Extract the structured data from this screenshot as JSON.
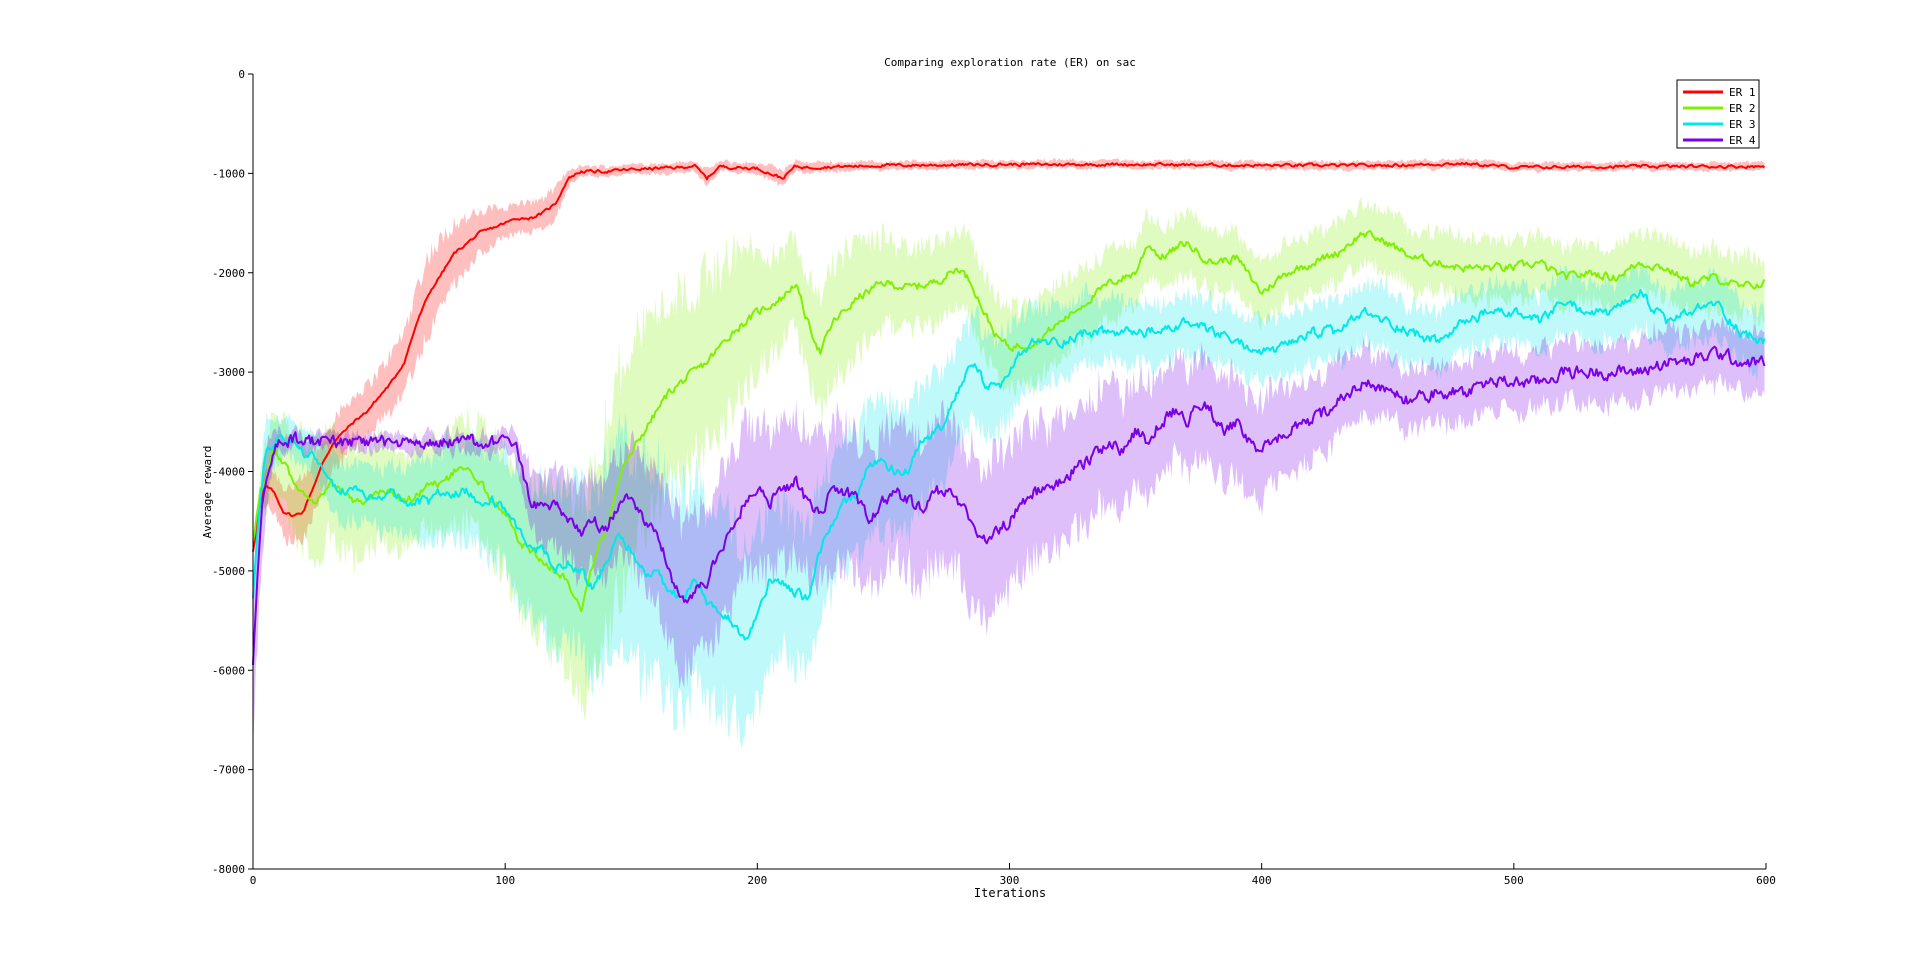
{
  "chart_data": {
    "type": "line",
    "title": "Comparing exploration rate (ER) on sac",
    "xlabel": "Iterations",
    "ylabel": "Average reward",
    "xlim": [
      0,
      600
    ],
    "ylim": [
      -8000,
      0
    ],
    "xticks": [
      0,
      100,
      200,
      300,
      400,
      500,
      600
    ],
    "yticks": [
      -8000,
      -7000,
      -6000,
      -5000,
      -4000,
      -3000,
      -2000,
      -1000,
      0
    ],
    "legend_position": "top-right",
    "grid": false,
    "shaded_band": "variance band around each mean line",
    "series": [
      {
        "name": "ER 1",
        "color": "#ff0000",
        "x": [
          0,
          3,
          5,
          8,
          12,
          16,
          20,
          24,
          28,
          32,
          36,
          40,
          45,
          50,
          55,
          60,
          65,
          70,
          75,
          80,
          85,
          90,
          95,
          100,
          105,
          110,
          115,
          120,
          125,
          130,
          140,
          150,
          160,
          170,
          175,
          180,
          185,
          190,
          200,
          205,
          210,
          215,
          220,
          250,
          300,
          350,
          400,
          450,
          480,
          500,
          550,
          600
        ],
        "y": [
          -4800,
          -4300,
          -4150,
          -4200,
          -4400,
          -4450,
          -4400,
          -4150,
          -3900,
          -3700,
          -3600,
          -3500,
          -3400,
          -3250,
          -3100,
          -2900,
          -2500,
          -2200,
          -2000,
          -1800,
          -1700,
          -1600,
          -1550,
          -1500,
          -1450,
          -1450,
          -1400,
          -1300,
          -1050,
          -980,
          -980,
          -960,
          -950,
          -940,
          -920,
          -1050,
          -930,
          -940,
          -950,
          -1000,
          -1050,
          -930,
          -940,
          -920,
          -910,
          -910,
          -920,
          -920,
          -900,
          -940,
          -930,
          -930
        ],
        "band": [
          0,
          0,
          200,
          200,
          250,
          300,
          300,
          250,
          250,
          250,
          250,
          250,
          250,
          250,
          300,
          300,
          350,
          400,
          350,
          300,
          250,
          200,
          200,
          150,
          150,
          150,
          150,
          150,
          80,
          50,
          50,
          50,
          50,
          50,
          50,
          80,
          50,
          50,
          50,
          80,
          80,
          50,
          50,
          40,
          40,
          40,
          40,
          40,
          40,
          40,
          40,
          40
        ]
      },
      {
        "name": "ER 2",
        "color": "#80f000",
        "x": [
          0,
          3,
          5,
          8,
          12,
          16,
          20,
          25,
          30,
          35,
          40,
          45,
          50,
          55,
          60,
          65,
          70,
          75,
          80,
          85,
          90,
          95,
          100,
          105,
          110,
          115,
          120,
          125,
          130,
          135,
          140,
          145,
          150,
          155,
          160,
          165,
          170,
          180,
          190,
          200,
          210,
          215,
          220,
          225,
          230,
          240,
          250,
          260,
          270,
          280,
          285,
          290,
          295,
          300,
          310,
          320,
          330,
          340,
          350,
          355,
          360,
          370,
          380,
          390,
          400,
          410,
          420,
          430,
          440,
          450,
          460,
          470,
          480,
          490,
          500,
          510,
          520,
          530,
          540,
          550,
          560,
          570,
          580,
          590,
          600
        ],
        "y": [
          -4700,
          -4200,
          -4100,
          -3800,
          -3900,
          -4100,
          -4200,
          -4300,
          -4100,
          -4200,
          -4300,
          -4300,
          -4200,
          -4200,
          -4300,
          -4250,
          -4100,
          -4150,
          -4000,
          -4000,
          -4100,
          -4300,
          -4400,
          -4700,
          -4800,
          -4900,
          -5000,
          -5100,
          -5400,
          -4900,
          -4600,
          -4100,
          -3800,
          -3600,
          -3400,
          -3200,
          -3100,
          -2900,
          -2600,
          -2400,
          -2250,
          -2100,
          -2500,
          -2800,
          -2500,
          -2250,
          -2100,
          -2150,
          -2100,
          -1950,
          -2100,
          -2400,
          -2650,
          -2750,
          -2700,
          -2500,
          -2300,
          -2100,
          -2000,
          -1700,
          -1850,
          -1700,
          -1900,
          -1850,
          -2200,
          -2000,
          -1900,
          -1800,
          -1600,
          -1700,
          -1850,
          -1900,
          -1950,
          -1950,
          -1950,
          -1900,
          -2050,
          -2000,
          -2050,
          -1900,
          -1950,
          -2100,
          -2050,
          -2150,
          -2100
        ],
        "band": [
          0,
          200,
          350,
          400,
          450,
          500,
          550,
          550,
          550,
          550,
          550,
          500,
          500,
          500,
          450,
          450,
          450,
          450,
          500,
          500,
          550,
          600,
          600,
          650,
          700,
          750,
          800,
          900,
          1000,
          1000,
          1100,
          1100,
          1100,
          1050,
          1000,
          950,
          900,
          850,
          800,
          600,
          450,
          450,
          500,
          600,
          600,
          550,
          450,
          400,
          400,
          400,
          400,
          400,
          400,
          400,
          400,
          400,
          350,
          350,
          300,
          300,
          300,
          300,
          300,
          300,
          300,
          300,
          300,
          300,
          300,
          300,
          300,
          300,
          300,
          300,
          300,
          300,
          300,
          300,
          300,
          300,
          300,
          300,
          300,
          300,
          300
        ]
      },
      {
        "name": "ER 3",
        "color": "#00e8e8",
        "x": [
          0,
          2,
          5,
          8,
          12,
          16,
          20,
          25,
          30,
          35,
          40,
          45,
          50,
          55,
          60,
          65,
          70,
          75,
          80,
          85,
          90,
          95,
          100,
          105,
          110,
          115,
          120,
          125,
          130,
          135,
          140,
          145,
          150,
          155,
          160,
          165,
          170,
          175,
          180,
          185,
          190,
          195,
          200,
          205,
          210,
          215,
          220,
          225,
          230,
          235,
          240,
          245,
          250,
          255,
          260,
          265,
          270,
          275,
          280,
          285,
          290,
          295,
          300,
          305,
          310,
          320,
          330,
          340,
          350,
          360,
          370,
          380,
          390,
          400,
          410,
          420,
          430,
          440,
          450,
          460,
          470,
          480,
          490,
          500,
          510,
          520,
          530,
          540,
          550,
          560,
          570,
          580,
          590,
          600
        ],
        "y": [
          -5300,
          -4600,
          -3800,
          -3700,
          -3650,
          -3700,
          -3800,
          -3900,
          -4100,
          -4200,
          -4200,
          -4250,
          -4300,
          -4200,
          -4300,
          -4300,
          -4300,
          -4200,
          -4200,
          -4200,
          -4300,
          -4300,
          -4400,
          -4600,
          -4800,
          -4800,
          -5000,
          -4900,
          -5000,
          -5200,
          -4900,
          -4600,
          -4800,
          -5000,
          -5000,
          -5200,
          -5300,
          -5100,
          -5300,
          -5400,
          -5500,
          -5700,
          -5400,
          -5100,
          -5100,
          -5200,
          -5300,
          -4800,
          -4500,
          -4300,
          -4200,
          -3900,
          -3900,
          -4000,
          -4000,
          -3700,
          -3600,
          -3500,
          -3200,
          -2900,
          -3100,
          -3200,
          -3000,
          -2800,
          -2700,
          -2700,
          -2600,
          -2600,
          -2600,
          -2600,
          -2500,
          -2600,
          -2700,
          -2800,
          -2750,
          -2600,
          -2600,
          -2400,
          -2500,
          -2600,
          -2700,
          -2500,
          -2400,
          -2400,
          -2500,
          -2300,
          -2400,
          -2400,
          -2200,
          -2500,
          -2400,
          -2300,
          -2600,
          -2700
        ],
        "band": [
          0,
          200,
          300,
          250,
          200,
          200,
          200,
          250,
          250,
          300,
          300,
          300,
          300,
          350,
          350,
          400,
          400,
          450,
          450,
          500,
          500,
          550,
          600,
          650,
          700,
          750,
          800,
          800,
          850,
          900,
          950,
          1000,
          1050,
          1100,
          1100,
          1100,
          1100,
          1050,
          1000,
          1000,
          950,
          900,
          850,
          800,
          750,
          700,
          700,
          700,
          650,
          650,
          650,
          650,
          650,
          600,
          600,
          600,
          550,
          550,
          500,
          500,
          500,
          450,
          450,
          400,
          400,
          350,
          350,
          300,
          300,
          300,
          300,
          300,
          300,
          300,
          300,
          300,
          300,
          300,
          300,
          300,
          300,
          300,
          300,
          300,
          300,
          300,
          300,
          300,
          300,
          300,
          300,
          300,
          300,
          300
        ]
      },
      {
        "name": "ER 4",
        "color": "#7a00e6",
        "x": [
          0,
          2,
          4,
          6,
          8,
          10,
          15,
          20,
          30,
          40,
          50,
          60,
          70,
          80,
          90,
          100,
          105,
          110,
          115,
          120,
          125,
          130,
          135,
          140,
          145,
          150,
          155,
          160,
          165,
          170,
          175,
          180,
          185,
          190,
          195,
          200,
          205,
          210,
          215,
          220,
          225,
          230,
          235,
          240,
          245,
          250,
          255,
          260,
          265,
          270,
          275,
          280,
          285,
          290,
          295,
          300,
          305,
          310,
          315,
          320,
          325,
          330,
          335,
          340,
          345,
          350,
          355,
          360,
          365,
          370,
          375,
          380,
          385,
          390,
          395,
          400,
          410,
          420,
          430,
          440,
          450,
          460,
          470,
          480,
          490,
          500,
          510,
          520,
          530,
          540,
          550,
          560,
          570,
          580,
          590,
          600
        ],
        "y": [
          -6000,
          -5000,
          -4300,
          -4000,
          -3800,
          -3700,
          -3680,
          -3680,
          -3700,
          -3700,
          -3700,
          -3720,
          -3720,
          -3700,
          -3700,
          -3700,
          -3800,
          -4300,
          -4400,
          -4300,
          -4500,
          -4600,
          -4500,
          -4600,
          -4300,
          -4300,
          -4500,
          -4600,
          -5000,
          -5300,
          -5200,
          -5100,
          -4800,
          -4600,
          -4300,
          -4200,
          -4300,
          -4200,
          -4100,
          -4300,
          -4400,
          -4200,
          -4200,
          -4300,
          -4500,
          -4300,
          -4200,
          -4300,
          -4400,
          -4200,
          -4200,
          -4300,
          -4500,
          -4700,
          -4600,
          -4500,
          -4300,
          -4200,
          -4200,
          -4100,
          -4000,
          -3900,
          -3800,
          -3700,
          -3800,
          -3600,
          -3700,
          -3500,
          -3400,
          -3500,
          -3300,
          -3400,
          -3600,
          -3500,
          -3700,
          -3800,
          -3600,
          -3500,
          -3300,
          -3100,
          -3200,
          -3300,
          -3200,
          -3200,
          -3100,
          -3100,
          -3100,
          -3000,
          -3000,
          -3000,
          -3000,
          -2900,
          -2900,
          -2800,
          -2900,
          -2900
        ],
        "band": [
          600,
          600,
          400,
          300,
          150,
          100,
          80,
          80,
          80,
          80,
          80,
          80,
          80,
          80,
          80,
          100,
          150,
          300,
          350,
          400,
          450,
          450,
          450,
          500,
          500,
          550,
          600,
          650,
          700,
          750,
          750,
          750,
          750,
          750,
          750,
          750,
          750,
          700,
          700,
          700,
          700,
          700,
          700,
          700,
          700,
          700,
          700,
          700,
          700,
          700,
          700,
          700,
          750,
          750,
          750,
          700,
          700,
          650,
          650,
          650,
          600,
          600,
          600,
          600,
          550,
          550,
          550,
          500,
          500,
          500,
          500,
          500,
          500,
          500,
          500,
          500,
          450,
          400,
          400,
          350,
          300,
          300,
          300,
          300,
          300,
          300,
          300,
          300,
          300,
          300,
          300,
          300,
          300,
          300,
          300,
          300
        ]
      }
    ]
  }
}
